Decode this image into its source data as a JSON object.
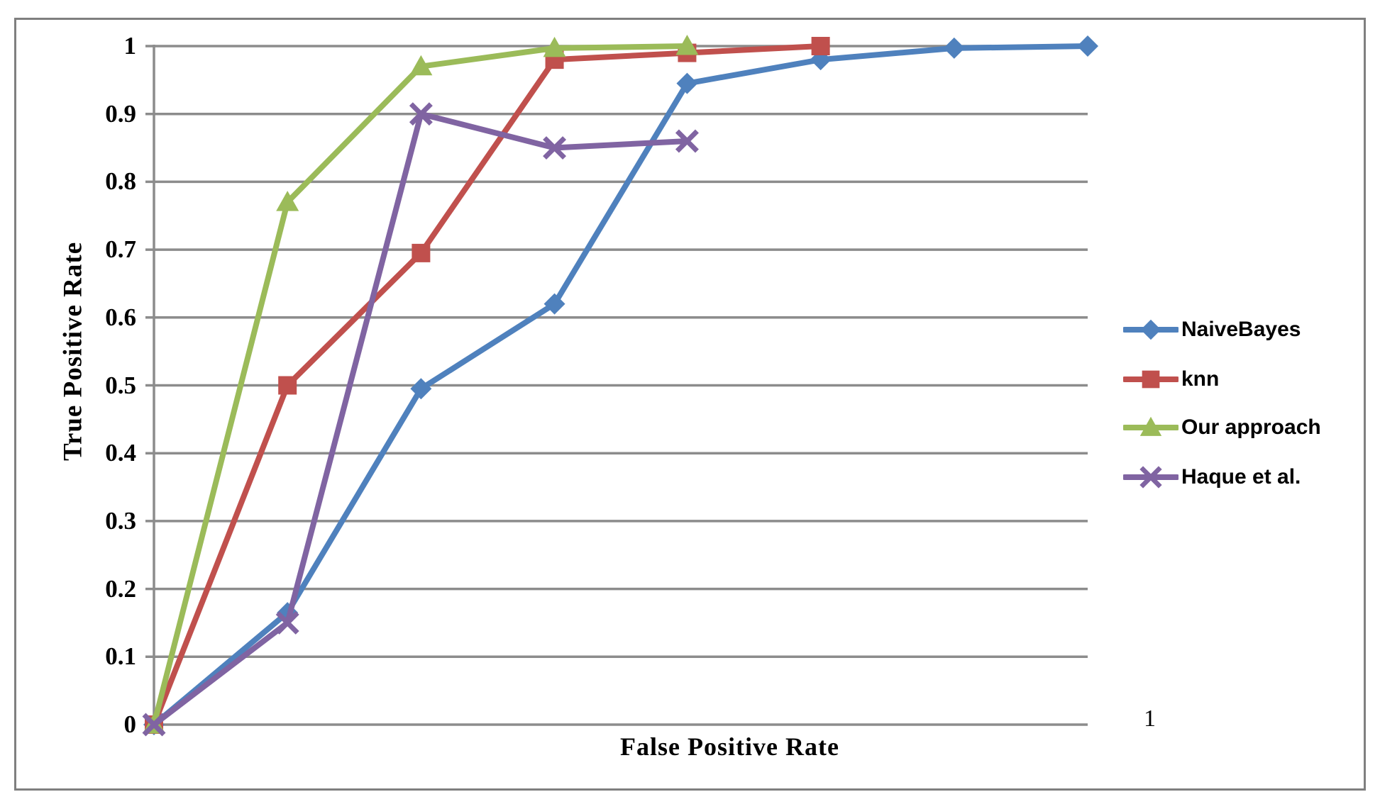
{
  "chart_data": {
    "type": "line",
    "title": "",
    "xlabel": "False Positive Rate",
    "ylabel": "True Positive Rate",
    "xlim": [
      0,
      1
    ],
    "ylim": [
      0,
      1
    ],
    "grid": "horizontal",
    "gridline_color": "#8c8c8c",
    "axis_line_color": "#8c8c8c",
    "figure_border_color": "#7f7f7f",
    "background": "#ffffff",
    "legend_position": "right-outside",
    "y_tick_labels": [
      "1",
      "0.9",
      "0.8",
      "0.7",
      "0.6",
      "0.5",
      "0.4",
      "0.3",
      "0.2",
      "0.1",
      "0"
    ],
    "y_tick_values": [
      1,
      0.9,
      0.8,
      0.7,
      0.6,
      0.5,
      0.4,
      0.3,
      0.2,
      0.1,
      0
    ],
    "x_tick_label": "1",
    "series": [
      {
        "name": "NaiveBayes",
        "color": "#4f81bd",
        "marker": "diamond",
        "x": [
          0,
          0.143,
          0.286,
          0.429,
          0.571,
          0.714,
          0.857,
          1.0
        ],
        "y": [
          0,
          0.165,
          0.495,
          0.62,
          0.945,
          0.98,
          0.997,
          1.0
        ]
      },
      {
        "name": "knn",
        "color": "#c0504d",
        "marker": "square",
        "x": [
          0,
          0.143,
          0.286,
          0.429,
          0.571,
          0.714
        ],
        "y": [
          0,
          0.5,
          0.695,
          0.98,
          0.99,
          1.0
        ]
      },
      {
        "name": "Our approach",
        "color": "#9bbb59",
        "marker": "triangle",
        "x": [
          0,
          0.143,
          0.286,
          0.429,
          0.571
        ],
        "y": [
          0,
          0.77,
          0.97,
          0.997,
          1.0
        ]
      },
      {
        "name": "Haque et al.",
        "color": "#8064a2",
        "marker": "x",
        "x": [
          0,
          0.143,
          0.286,
          0.429,
          0.571
        ],
        "y": [
          0,
          0.15,
          0.9,
          0.85,
          0.86
        ]
      }
    ]
  }
}
